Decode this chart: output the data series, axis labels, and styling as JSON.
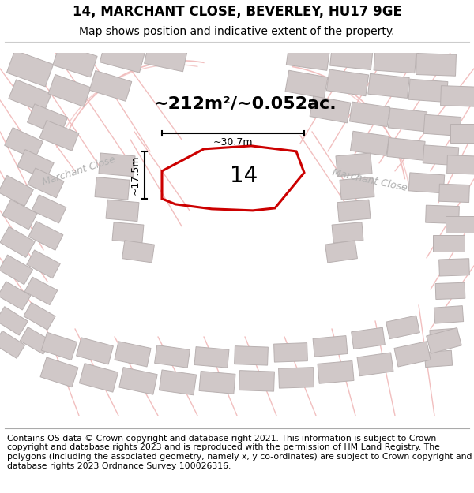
{
  "title": "14, MARCHANT CLOSE, BEVERLEY, HU17 9GE",
  "subtitle": "Map shows position and indicative extent of the property.",
  "footer": "Contains OS data © Crown copyright and database right 2021. This information is subject to Crown copyright and database rights 2023 and is reproduced with the permission of HM Land Registry. The polygons (including the associated geometry, namely x, y co-ordinates) are subject to Crown copyright and database rights 2023 Ordnance Survey 100026316.",
  "map_bg": "#f2efef",
  "plot_color": "#cc0000",
  "road_color": "#f0b8b8",
  "building_color": "#d0c8c8",
  "building_edge": "#b8b0b0",
  "road_outline": "#e8a0a0",
  "area_text": "~212m²/~0.052ac.",
  "number_text": "14",
  "dim_width": "~30.7m",
  "dim_height": "~17.5m",
  "road_label_left": "Marchant Close",
  "road_label_right": "Marchant Close",
  "title_fontsize": 12,
  "subtitle_fontsize": 10,
  "footer_fontsize": 7.8,
  "area_fontsize": 16,
  "number_fontsize": 20,
  "dim_fontsize": 9,
  "road_label_fontsize": 9
}
